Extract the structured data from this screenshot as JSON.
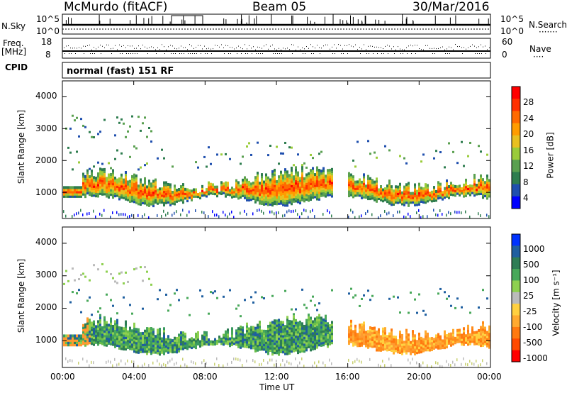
{
  "header": {
    "station": "McMurdo (fitACF)",
    "beam": "Beam 05",
    "date": "30/Mar/2016"
  },
  "top_panel": {
    "left_label": "N.Sky",
    "left_ticks": [
      "10^5",
      "10^0"
    ],
    "right_ticks": [
      "10^5",
      "10^0"
    ],
    "right_label": "N.Search"
  },
  "freq_panel": {
    "left_label_line1": "Freq.",
    "left_label_line2": "[MHz]",
    "left_ticks": [
      "18",
      "8"
    ],
    "right_ticks": [
      "60",
      "0"
    ],
    "right_label": "Nave"
  },
  "cpid_panel": {
    "label": "CPID",
    "text": "normal (fast) 151 RF"
  },
  "x_axis": {
    "label": "Time UT",
    "ticks": [
      "00:00",
      "04:00",
      "08:00",
      "12:00",
      "16:00",
      "20:00",
      "00:00"
    ]
  },
  "chart_data": [
    {
      "type": "heatmap",
      "name": "power",
      "ylabel": "Slant Range [km]",
      "yticks": [
        "1000",
        "2000",
        "3000",
        "4000"
      ],
      "ylim": [
        180,
        4500
      ],
      "xlim_hours": [
        0,
        24
      ],
      "colorbar_label": "Power [dB]",
      "colorbar_ticks": [
        "4",
        "8",
        "12",
        "16",
        "20",
        "24",
        "28"
      ],
      "colorbar_colors": [
        "#0000ff",
        "#1f4fae",
        "#2e7d4f",
        "#5aa050",
        "#9acc3a",
        "#e8c020",
        "#ff9c00",
        "#ff6a00",
        "#ff3000",
        "#ff0000"
      ]
    },
    {
      "type": "heatmap",
      "name": "velocity",
      "ylabel": "Slant Range [km]",
      "yticks": [
        "1000",
        "2000",
        "3000",
        "4000"
      ],
      "ylim": [
        180,
        4500
      ],
      "xlim_hours": [
        0,
        24
      ],
      "colorbar_label": "Velocity [m s⁻¹]",
      "colorbar_ticks": [
        "1000",
        "500",
        "100",
        "25",
        "-25",
        "-100",
        "-500",
        "-1000"
      ],
      "colorbar_colors": [
        "#0033ff",
        "#1f5fa0",
        "#2e7d55",
        "#48a85a",
        "#8ed050",
        "#bbbbbb",
        "#ffd040",
        "#ffaa30",
        "#ff7a10",
        "#ff4a00",
        "#ff0000"
      ]
    }
  ],
  "legend": {
    "n_search_dots": "·······",
    "nave_dots": "····"
  }
}
